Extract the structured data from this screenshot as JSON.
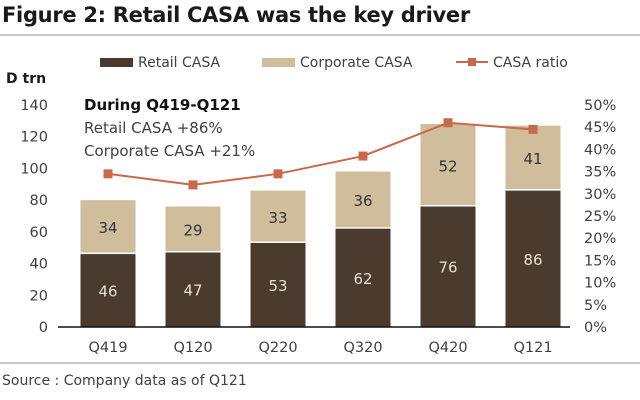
{
  "figure": {
    "title": "Figure 2: Retail CASA was the key driver",
    "source": "Source : Company data as of Q121"
  },
  "chart_data": {
    "type": "bar",
    "stacked": true,
    "title": "Figure 2: Retail CASA was the key driver",
    "categories": [
      "Q419",
      "Q120",
      "Q220",
      "Q320",
      "Q420",
      "Q121"
    ],
    "series": [
      {
        "name": "Retail CASA",
        "kind": "bar",
        "axis": "left",
        "color": "#4b3a2e",
        "values": [
          46,
          47,
          53,
          62,
          76,
          86
        ]
      },
      {
        "name": "Corporate CASA",
        "kind": "bar",
        "axis": "left",
        "color": "#cfbd9c",
        "values": [
          34,
          29,
          33,
          36,
          52,
          41
        ]
      },
      {
        "name": "CASA ratio",
        "kind": "line",
        "axis": "right",
        "color": "#c8694a",
        "values": [
          34.5,
          32.0,
          34.5,
          38.5,
          46.0,
          44.5
        ]
      }
    ],
    "ylabel": "D trn",
    "ylim": [
      0,
      140
    ],
    "yticks": [
      "0",
      "20",
      "40",
      "60",
      "80",
      "100",
      "120",
      "140"
    ],
    "y2lim": [
      0,
      50
    ],
    "y2ticks": [
      "0%",
      "5%",
      "10%",
      "15%",
      "20%",
      "25%",
      "30%",
      "35%",
      "40%",
      "45%",
      "50%"
    ],
    "grid": false,
    "legend_position": "top",
    "annotation": {
      "heading": "During Q419-Q121",
      "lines": [
        "Retail CASA +86%",
        "Corporate CASA +21%"
      ]
    }
  }
}
